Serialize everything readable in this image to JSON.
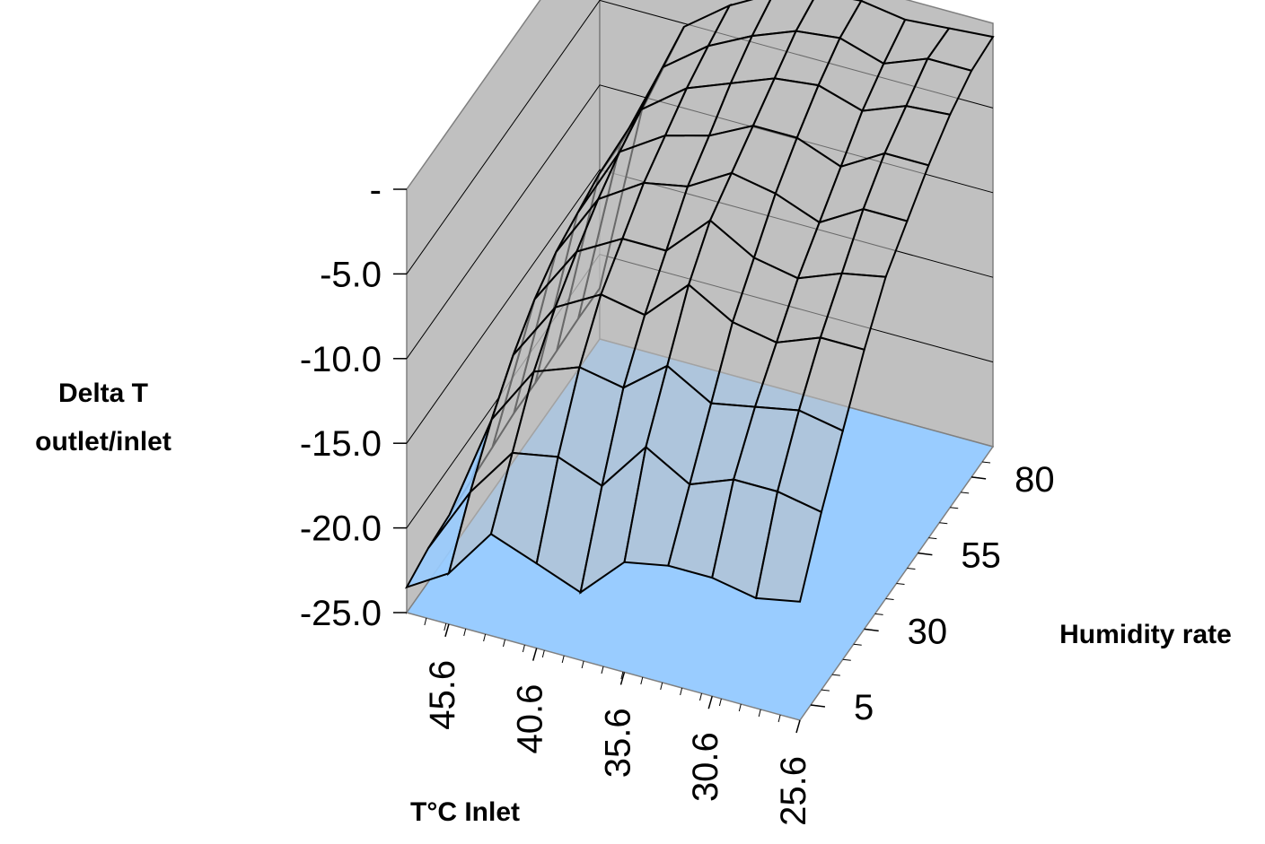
{
  "chart_data": {
    "type": "surface",
    "xlabel": "T°C Inlet",
    "ylabel": "Humidity rate",
    "zlabel": [
      "Delta T",
      "outlet/inlet"
    ],
    "x_ticks": [
      "45.6",
      "40.6",
      "35.6",
      "30.6",
      "25.6"
    ],
    "y_ticks": [
      "5",
      "30",
      "55",
      "80"
    ],
    "z_ticks": [
      "-",
      "-5.0",
      "-10.0",
      "-15.0",
      "-20.0",
      "-25.0"
    ],
    "zlim": [
      -25,
      0
    ],
    "x_range": [
      48,
      25.6
    ],
    "y_range": [
      0,
      90
    ],
    "temperature": [
      48,
      45.6,
      43.2,
      40.6,
      38.1,
      35.6,
      33.1,
      30.6,
      28.1,
      25.6
    ],
    "humidity": [
      0,
      10,
      20,
      30,
      40,
      50,
      60,
      70,
      80,
      90
    ],
    "delta_t": [
      [
        -23.5,
        -23.0,
        -22.8,
        -22.6,
        -22.4,
        -22.2,
        -22.2,
        -22.1,
        -22.0,
        -22.0
      ],
      [
        -22.0,
        -19.0,
        -16.5,
        -14.5,
        -13.0,
        -12.0,
        -11.5,
        -11.0,
        -11.0,
        -10.8
      ],
      [
        -19.0,
        -16.0,
        -13.0,
        -11.0,
        -9.5,
        -8.2,
        -7.2,
        -6.5,
        -5.8,
        -5.2
      ],
      [
        -20.0,
        -15.5,
        -12.0,
        -9.5,
        -8.0,
        -6.5,
        -5.5,
        -4.5,
        -3.8,
        -3.2
      ],
      [
        -21.0,
        -16.5,
        -12.5,
        -10.0,
        -8.0,
        -6.0,
        -4.8,
        -3.5,
        -2.5,
        -1.8
      ],
      [
        -18.5,
        -13.5,
        -10.5,
        -7.5,
        -5.5,
        -4.5,
        -3.5,
        -2.5,
        -1.5,
        -1.0
      ],
      [
        -18.0,
        -15.0,
        -12.0,
        -9.0,
        -7.0,
        -5.0,
        -3.5,
        -2.2,
        -1.2,
        -0.8
      ],
      [
        -18.0,
        -14.0,
        -11.5,
        -9.5,
        -7.5,
        -6.0,
        -4.5,
        -3.0,
        -2.0,
        -1.2
      ],
      [
        -18.5,
        -14.0,
        -11.0,
        -8.5,
        -6.5,
        -4.5,
        -3.0,
        -2.0,
        -1.0,
        -1.0
      ],
      [
        -18.0,
        -14.5,
        -11.5,
        -8.5,
        -6.0,
        -4.5,
        -3.0,
        -1.8,
        -1.0,
        -0.8
      ]
    ],
    "colors": {
      "walls": "#c0c0c0",
      "floor": "#99ccff",
      "mesh_fill": "#99ccff",
      "mesh_line": "#000000",
      "gridline": "#000000",
      "edge": "#808080"
    }
  }
}
